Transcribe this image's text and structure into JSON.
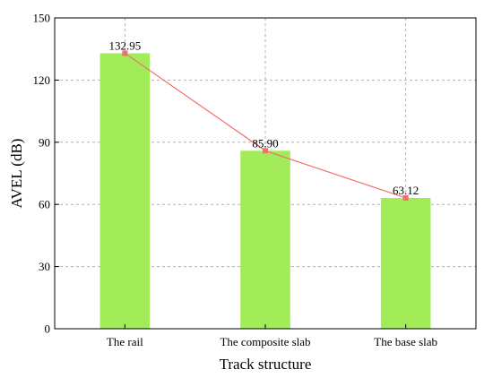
{
  "chart_data": {
    "type": "bar",
    "categories": [
      "The rail",
      "The composite slab",
      "The base slab"
    ],
    "values": [
      132.95,
      85.9,
      63.12
    ],
    "value_labels": [
      "132.95",
      "85.90",
      "63.12"
    ],
    "overlay_line": true,
    "title": "",
    "xlabel": "Track structure",
    "ylabel": "AVEL (dB)",
    "ylim": [
      0,
      150
    ],
    "yticks": [
      0,
      30,
      60,
      90,
      120,
      150
    ],
    "grid": true,
    "legend": "none",
    "colors": {
      "bar": "#a2ec5a",
      "line": "#f26d6d",
      "marker": "#f26d6d",
      "grid": "#b0b0b0"
    }
  }
}
